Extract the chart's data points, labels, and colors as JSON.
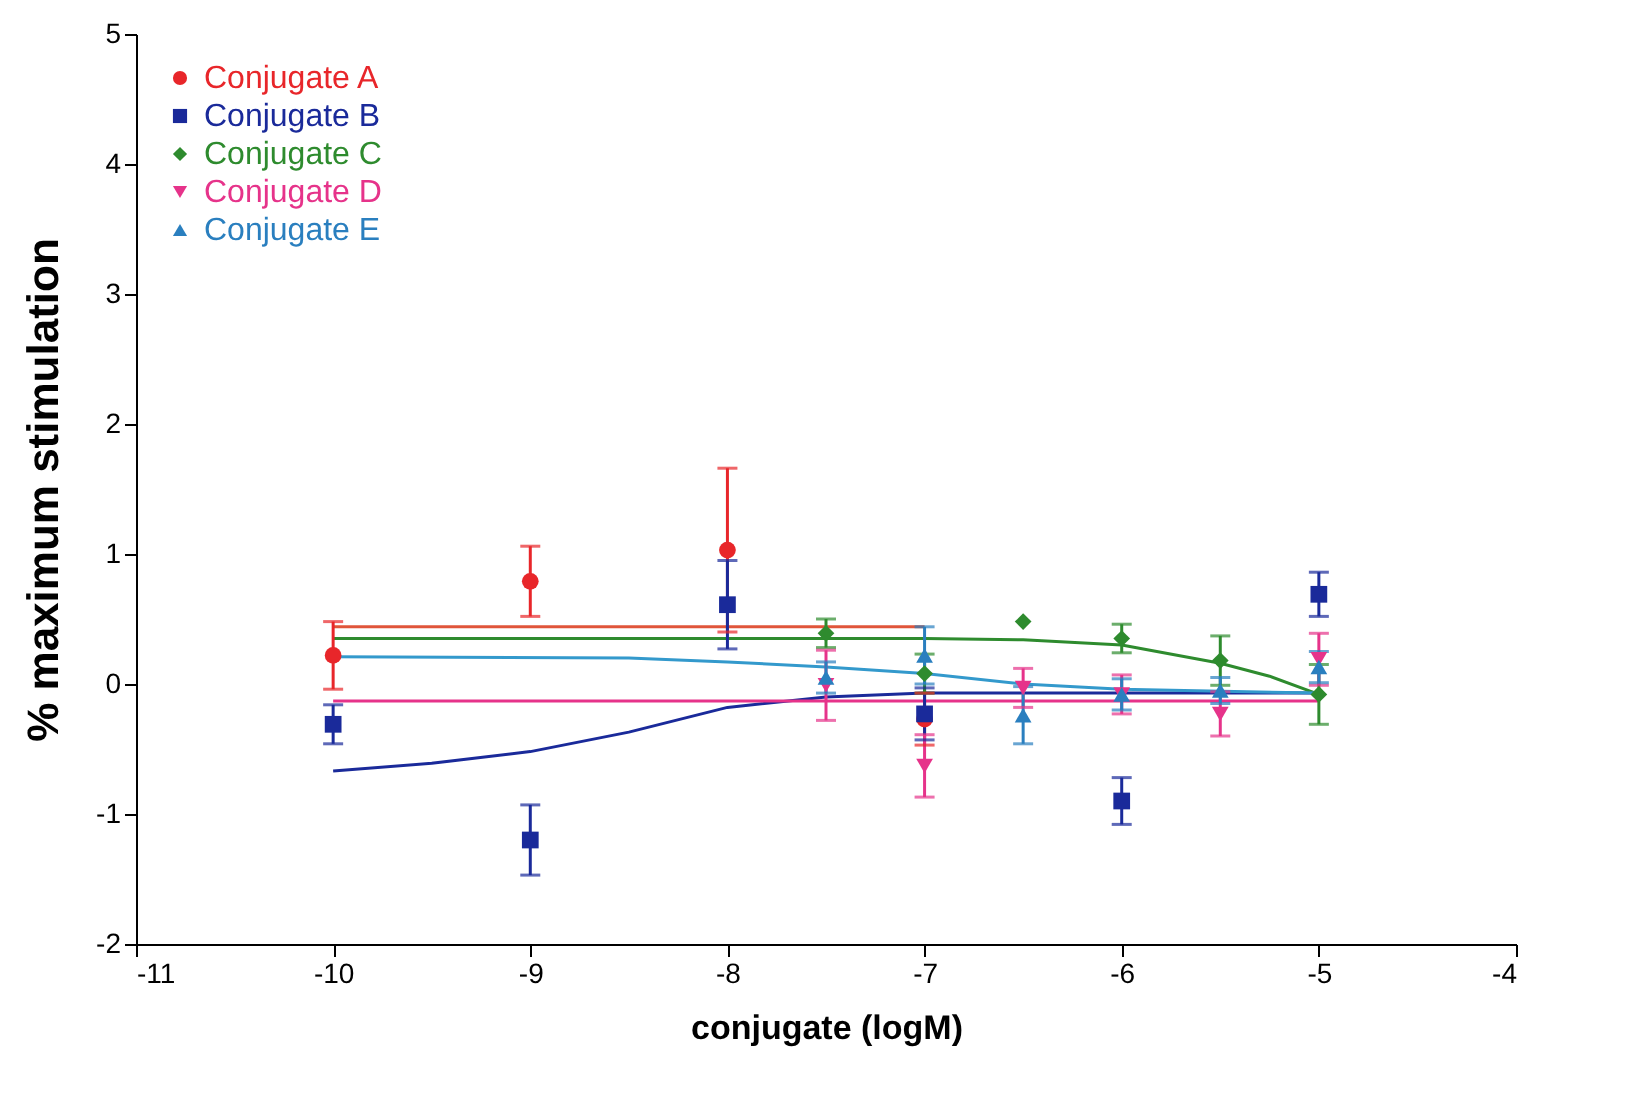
{
  "chart_data": {
    "type": "scatter",
    "xlabel": "conjugate (logM)",
    "ylabel": "% maximum stimulation",
    "xlim": [
      -11,
      -4
    ],
    "xticks": [
      -11,
      -10,
      -9,
      -8,
      -7,
      -6,
      -5,
      -4
    ],
    "ylim": [
      -2,
      5
    ],
    "yticks": [
      -2,
      -1,
      0,
      1,
      2,
      3,
      4,
      5
    ],
    "legend": "top left",
    "grid": false,
    "line_style": "solid",
    "series": [
      {
        "name": "Conjugate A",
        "marker": "circle",
        "color": "#e8262a",
        "x": [
          -10,
          -9,
          -8,
          -7
        ],
        "values": [
          0.22,
          0.79,
          1.03,
          -0.27
        ],
        "errors": [
          0.26,
          0.27,
          0.63,
          0.2
        ]
      },
      {
        "name": "Conjugate B",
        "marker": "square",
        "color": "#1a2a9a",
        "x": [
          -10,
          -9,
          -8,
          -7,
          -6,
          -5
        ],
        "values": [
          -0.31,
          -1.2,
          0.61,
          -0.23,
          -0.9,
          0.69
        ],
        "errors": [
          0.15,
          0.27,
          0.34,
          0.2,
          0.18,
          0.17
        ]
      },
      {
        "name": "Conjugate C",
        "marker": "diamond",
        "color": "#2e8b2e",
        "x": [
          -7.5,
          -7,
          -6.5,
          -6,
          -5.5,
          -5
        ],
        "values": [
          0.39,
          0.08,
          0.48,
          0.35,
          0.18,
          -0.08
        ],
        "errors": [
          0.11,
          0.15,
          null,
          0.11,
          0.19,
          0.23
        ]
      },
      {
        "name": "Conjugate D",
        "marker": "triangle-down",
        "color": "#e6338a",
        "x": [
          -7.5,
          -7,
          -6.5,
          -6,
          -5.5,
          -5
        ],
        "values": [
          -0.01,
          -0.63,
          -0.03,
          -0.08,
          -0.23,
          0.19
        ],
        "errors": [
          0.27,
          0.24,
          0.15,
          0.15,
          0.17,
          0.2
        ]
      },
      {
        "name": "Conjugate E",
        "marker": "triangle",
        "color": "#2a7fbf",
        "x": [
          -7.5,
          -7,
          -6.5,
          -6,
          -5.5,
          -5
        ],
        "values": [
          0.05,
          0.22,
          -0.24,
          -0.08,
          -0.05,
          0.13
        ],
        "errors": [
          0.12,
          0.22,
          0.22,
          0.12,
          0.1,
          0.12
        ]
      },
      {
        "type": "line",
        "color": "#e0553a",
        "x": [
          -10,
          -7
        ],
        "values": [
          0.44,
          0.44
        ]
      },
      {
        "type": "line",
        "color": "#1a2a9a",
        "x": [
          -10,
          -9.5,
          -9,
          -8.5,
          -8,
          -7.5,
          -7,
          -5
        ],
        "values": [
          -0.67,
          -0.61,
          -0.52,
          -0.37,
          -0.18,
          -0.1,
          -0.07,
          -0.07
        ]
      },
      {
        "type": "line",
        "color": "#2e8b2e",
        "x": [
          -10,
          -7,
          -6.5,
          -6,
          -5.5,
          -5.25,
          -5
        ],
        "values": [
          0.35,
          0.35,
          0.34,
          0.3,
          0.16,
          0.06,
          -0.08
        ]
      },
      {
        "type": "line",
        "color": "#e6338a",
        "x": [
          -10,
          -5
        ],
        "values": [
          -0.13,
          -0.13
        ]
      },
      {
        "type": "line",
        "color": "#3399cc",
        "x": [
          -10,
          -8.5,
          -8,
          -7.5,
          -7,
          -6.5,
          -6,
          -5
        ],
        "values": [
          0.21,
          0.2,
          0.17,
          0.13,
          0.08,
          0.0,
          -0.04,
          -0.07
        ]
      }
    ]
  }
}
